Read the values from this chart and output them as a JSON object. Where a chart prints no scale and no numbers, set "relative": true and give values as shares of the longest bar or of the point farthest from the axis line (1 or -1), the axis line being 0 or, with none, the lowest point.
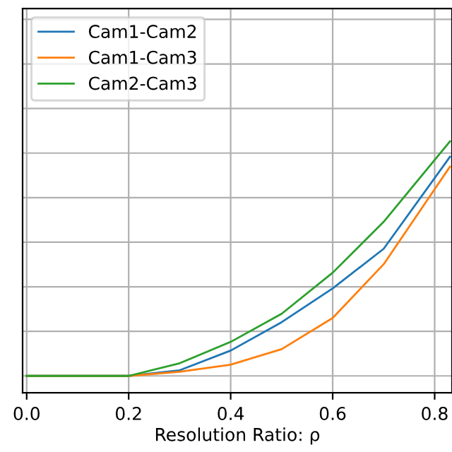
{
  "chart_data": {
    "type": "line",
    "xlabel": "Resolution Ratio: ρ",
    "relative": true,
    "x": [
      0,
      0.1,
      0.2,
      0.3,
      0.4,
      0.5,
      0.6,
      0.7,
      0.83
    ],
    "series": [
      {
        "name": "Cam1-Cam2",
        "color": "#1f77b4",
        "values": [
          0,
          0,
          0,
          0.024,
          0.108,
          0.229,
          0.373,
          0.542,
          0.934
        ]
      },
      {
        "name": "Cam1-Cam3",
        "color": "#ff7f0e",
        "values": [
          0,
          0,
          0,
          0.018,
          0.048,
          0.114,
          0.247,
          0.476,
          0.892
        ]
      },
      {
        "name": "Cam2-Cam3",
        "color": "#2ca02c",
        "values": [
          0,
          0,
          0,
          0.054,
          0.145,
          0.265,
          0.44,
          0.657,
          1
        ]
      }
    ],
    "xlim": [
      -0.008,
      0.834
    ],
    "xticks": [
      {
        "value": 0,
        "label": "0.0"
      },
      0.2,
      0.4,
      0.6,
      0.8
    ],
    "grid": true,
    "legend": "top left",
    "tick_labels": "x"
  }
}
